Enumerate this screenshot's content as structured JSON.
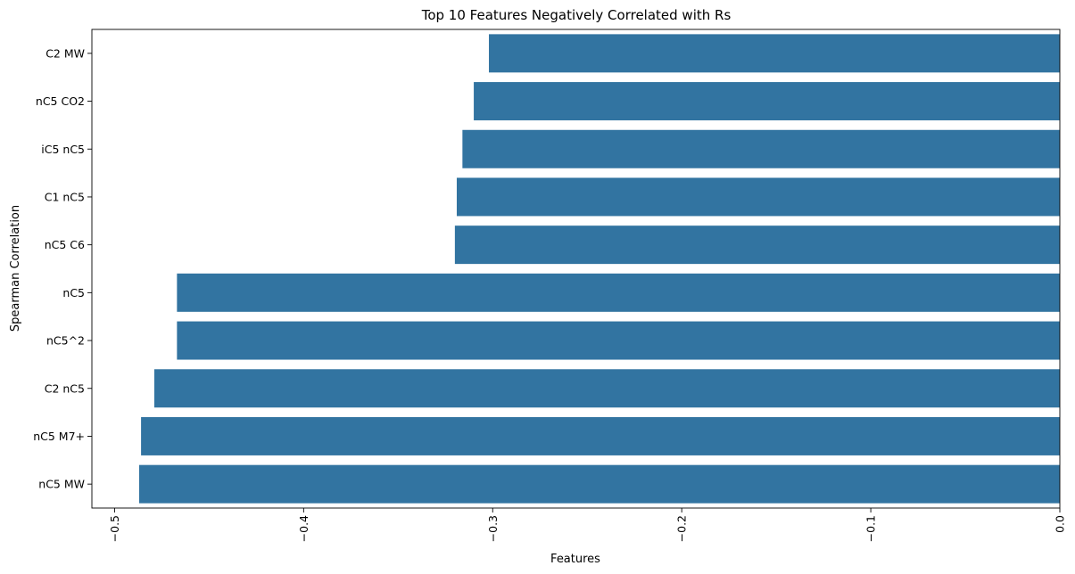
{
  "chart_data": {
    "type": "bar",
    "orientation": "horizontal",
    "title": "Top 10 Features Negatively Correlated with Rs",
    "xlabel": "Features",
    "ylabel": "Spearman Correlation",
    "categories": [
      "C2 MW",
      "nC5 CO2",
      "iC5 nC5",
      "C1 nC5",
      "nC5 C6",
      "nC5",
      "nC5^2",
      "C2 nC5",
      "nC5 M7+",
      "nC5 MW"
    ],
    "values": [
      -0.302,
      -0.31,
      -0.316,
      -0.319,
      -0.32,
      -0.467,
      -0.467,
      -0.479,
      -0.486,
      -0.487
    ],
    "xlim": [
      -0.512,
      0.0
    ],
    "xticks": [
      -0.5,
      -0.4,
      -0.3,
      -0.2,
      -0.1,
      0.0
    ],
    "xtick_labels": [
      "−0.5",
      "−0.4",
      "−0.3",
      "−0.2",
      "−0.1",
      "0.0"
    ],
    "xtick_rotation": "vertical",
    "grid": false,
    "legend": false,
    "bar_color": "#3274a1"
  }
}
